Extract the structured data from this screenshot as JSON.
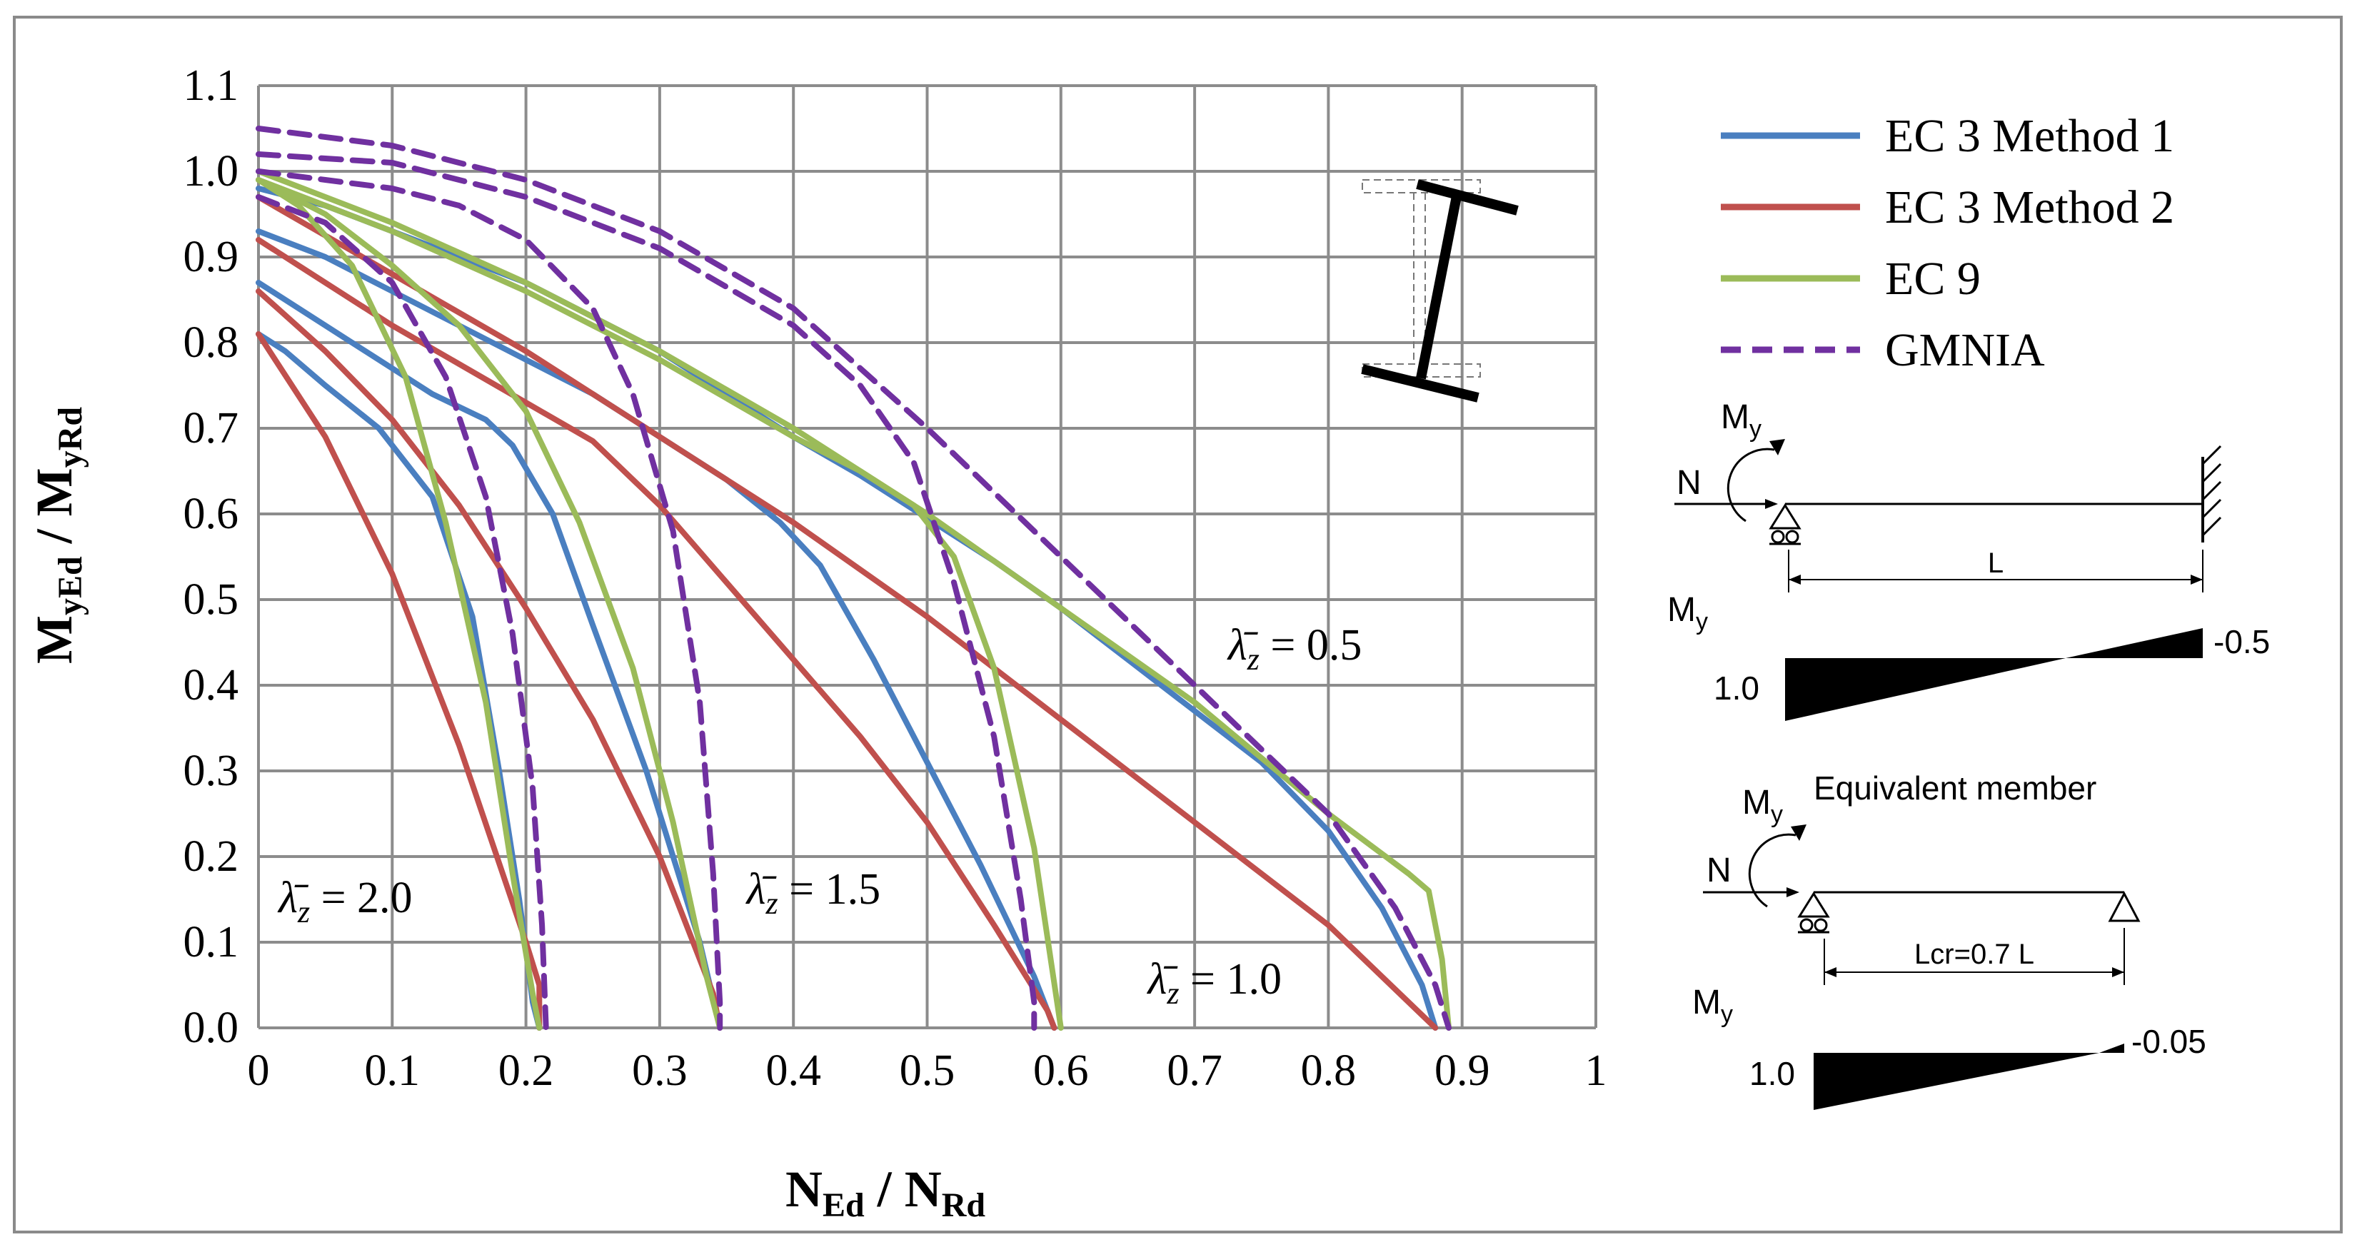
{
  "chart_data": {
    "type": "line",
    "xlabel_main": "N",
    "xlabel_sub1": "Ed",
    "xlabel_sep": " / ",
    "xlabel_main2": "N",
    "xlabel_sub2": "Rd",
    "ylabel_main": "M",
    "ylabel_sub1": "yEd",
    "ylabel_sep": " / ",
    "ylabel_main2": "M",
    "ylabel_sub2": "yRd",
    "xlim": [
      0,
      1
    ],
    "ylim": [
      0,
      1.1
    ],
    "x_ticks": [
      "0",
      "0.1",
      "0.2",
      "0.3",
      "0.4",
      "0.5",
      "0.6",
      "0.7",
      "0.8",
      "0.9",
      "1"
    ],
    "y_ticks": [
      "0.0",
      "0.1",
      "0.2",
      "0.3",
      "0.4",
      "0.5",
      "0.6",
      "0.7",
      "0.8",
      "0.9",
      "1.0",
      "1.1"
    ],
    "grid": true,
    "legend_position": "right",
    "series": [
      {
        "name": "EC 3 Method 1",
        "color": "#4a7fc0",
        "dash": false,
        "curves": [
          {
            "points": [
              [
                0,
                0.81
              ],
              [
                0.02,
                0.79
              ],
              [
                0.05,
                0.75
              ],
              [
                0.09,
                0.7
              ],
              [
                0.13,
                0.62
              ],
              [
                0.16,
                0.48
              ],
              [
                0.18,
                0.3
              ],
              [
                0.195,
                0.15
              ],
              [
                0.205,
                0.03
              ],
              [
                0.21,
                0.0
              ]
            ]
          },
          {
            "points": [
              [
                0,
                0.87
              ],
              [
                0.03,
                0.84
              ],
              [
                0.08,
                0.79
              ],
              [
                0.13,
                0.74
              ],
              [
                0.17,
                0.71
              ],
              [
                0.19,
                0.68
              ],
              [
                0.22,
                0.6
              ],
              [
                0.25,
                0.47
              ],
              [
                0.29,
                0.3
              ],
              [
                0.33,
                0.1
              ],
              [
                0.345,
                0.0
              ]
            ]
          },
          {
            "points": [
              [
                0,
                0.93
              ],
              [
                0.05,
                0.9
              ],
              [
                0.1,
                0.86
              ],
              [
                0.15,
                0.82
              ],
              [
                0.2,
                0.78
              ],
              [
                0.25,
                0.74
              ],
              [
                0.3,
                0.69
              ],
              [
                0.35,
                0.64
              ],
              [
                0.39,
                0.59
              ],
              [
                0.42,
                0.54
              ],
              [
                0.46,
                0.43
              ],
              [
                0.5,
                0.31
              ],
              [
                0.54,
                0.19
              ],
              [
                0.58,
                0.06
              ],
              [
                0.595,
                0.0
              ]
            ]
          },
          {
            "points": [
              [
                0,
                0.98
              ],
              [
                0.05,
                0.96
              ],
              [
                0.1,
                0.93
              ],
              [
                0.15,
                0.9
              ],
              [
                0.2,
                0.87
              ],
              [
                0.25,
                0.83
              ],
              [
                0.3,
                0.79
              ],
              [
                0.35,
                0.74
              ],
              [
                0.4,
                0.69
              ],
              [
                0.45,
                0.645
              ],
              [
                0.5,
                0.595
              ],
              [
                0.55,
                0.545
              ],
              [
                0.6,
                0.49
              ],
              [
                0.65,
                0.43
              ],
              [
                0.7,
                0.37
              ],
              [
                0.75,
                0.31
              ],
              [
                0.8,
                0.23
              ],
              [
                0.84,
                0.14
              ],
              [
                0.87,
                0.05
              ],
              [
                0.88,
                0.0
              ]
            ]
          }
        ]
      },
      {
        "name": "EC 3 Method 2",
        "color": "#c0504d",
        "dash": false,
        "curves": [
          {
            "points": [
              [
                0,
                0.81
              ],
              [
                0.05,
                0.69
              ],
              [
                0.1,
                0.53
              ],
              [
                0.15,
                0.33
              ],
              [
                0.2,
                0.1
              ],
              [
                0.21,
                0.05
              ],
              [
                0.21,
                0.0
              ]
            ]
          },
          {
            "points": [
              [
                0,
                0.86
              ],
              [
                0.05,
                0.79
              ],
              [
                0.1,
                0.71
              ],
              [
                0.15,
                0.61
              ],
              [
                0.2,
                0.49
              ],
              [
                0.25,
                0.36
              ],
              [
                0.3,
                0.2
              ],
              [
                0.34,
                0.04
              ],
              [
                0.345,
                0.0
              ]
            ]
          },
          {
            "points": [
              [
                0,
                0.92
              ],
              [
                0.05,
                0.87
              ],
              [
                0.1,
                0.82
              ],
              [
                0.15,
                0.775
              ],
              [
                0.2,
                0.73
              ],
              [
                0.25,
                0.685
              ],
              [
                0.3,
                0.61
              ],
              [
                0.35,
                0.52
              ],
              [
                0.4,
                0.43
              ],
              [
                0.45,
                0.34
              ],
              [
                0.5,
                0.24
              ],
              [
                0.55,
                0.12
              ],
              [
                0.59,
                0.02
              ],
              [
                0.595,
                0.0
              ]
            ]
          },
          {
            "points": [
              [
                0,
                0.97
              ],
              [
                0.1,
                0.88
              ],
              [
                0.2,
                0.79
              ],
              [
                0.3,
                0.69
              ],
              [
                0.4,
                0.59
              ],
              [
                0.5,
                0.48
              ],
              [
                0.6,
                0.36
              ],
              [
                0.7,
                0.24
              ],
              [
                0.8,
                0.12
              ],
              [
                0.88,
                0.0
              ]
            ]
          }
        ]
      },
      {
        "name": "EC 9",
        "color": "#9bbb59",
        "dash": false,
        "curves": [
          {
            "points": [
              [
                0,
                0.99
              ],
              [
                0.03,
                0.96
              ],
              [
                0.07,
                0.89
              ],
              [
                0.11,
                0.76
              ],
              [
                0.14,
                0.59
              ],
              [
                0.17,
                0.38
              ],
              [
                0.19,
                0.18
              ],
              [
                0.205,
                0.04
              ],
              [
                0.21,
                0.0
              ]
            ]
          },
          {
            "points": [
              [
                0,
                0.99
              ],
              [
                0.05,
                0.95
              ],
              [
                0.1,
                0.89
              ],
              [
                0.15,
                0.82
              ],
              [
                0.2,
                0.72
              ],
              [
                0.24,
                0.59
              ],
              [
                0.28,
                0.42
              ],
              [
                0.31,
                0.24
              ],
              [
                0.335,
                0.06
              ],
              [
                0.345,
                0.0
              ]
            ]
          },
          {
            "points": [
              [
                0,
                0.99
              ],
              [
                0.1,
                0.93
              ],
              [
                0.2,
                0.86
              ],
              [
                0.3,
                0.78
              ],
              [
                0.4,
                0.69
              ],
              [
                0.45,
                0.65
              ],
              [
                0.49,
                0.61
              ],
              [
                0.52,
                0.55
              ],
              [
                0.55,
                0.42
              ],
              [
                0.58,
                0.21
              ],
              [
                0.6,
                0.0
              ]
            ]
          },
          {
            "points": [
              [
                0,
                1.0
              ],
              [
                0.1,
                0.94
              ],
              [
                0.2,
                0.87
              ],
              [
                0.3,
                0.79
              ],
              [
                0.4,
                0.7
              ],
              [
                0.5,
                0.6
              ],
              [
                0.6,
                0.49
              ],
              [
                0.7,
                0.38
              ],
              [
                0.8,
                0.25
              ],
              [
                0.86,
                0.18
              ],
              [
                0.875,
                0.16
              ],
              [
                0.885,
                0.08
              ],
              [
                0.89,
                0.0
              ]
            ]
          }
        ]
      },
      {
        "name": "GMNIA",
        "color": "#7030a0",
        "dash": true,
        "curves": [
          {
            "points": [
              [
                0,
                0.97
              ],
              [
                0.05,
                0.94
              ],
              [
                0.1,
                0.87
              ],
              [
                0.14,
                0.76
              ],
              [
                0.17,
                0.62
              ],
              [
                0.19,
                0.46
              ],
              [
                0.205,
                0.28
              ],
              [
                0.212,
                0.12
              ],
              [
                0.215,
                0.0
              ]
            ]
          },
          {
            "points": [
              [
                0,
                1.0
              ],
              [
                0.05,
                0.99
              ],
              [
                0.1,
                0.98
              ],
              [
                0.15,
                0.96
              ],
              [
                0.2,
                0.92
              ],
              [
                0.25,
                0.84
              ],
              [
                0.28,
                0.74
              ],
              [
                0.31,
                0.58
              ],
              [
                0.33,
                0.38
              ],
              [
                0.34,
                0.18
              ],
              [
                0.345,
                0.03
              ],
              [
                0.345,
                0.0
              ]
            ]
          },
          {
            "points": [
              [
                0,
                1.02
              ],
              [
                0.1,
                1.01
              ],
              [
                0.2,
                0.97
              ],
              [
                0.3,
                0.91
              ],
              [
                0.4,
                0.82
              ],
              [
                0.45,
                0.75
              ],
              [
                0.49,
                0.66
              ],
              [
                0.52,
                0.52
              ],
              [
                0.55,
                0.34
              ],
              [
                0.57,
                0.15
              ],
              [
                0.58,
                0.03
              ],
              [
                0.58,
                0.0
              ]
            ]
          },
          {
            "points": [
              [
                0,
                1.05
              ],
              [
                0.1,
                1.03
              ],
              [
                0.2,
                0.99
              ],
              [
                0.3,
                0.93
              ],
              [
                0.4,
                0.84
              ],
              [
                0.5,
                0.7
              ],
              [
                0.6,
                0.55
              ],
              [
                0.7,
                0.4
              ],
              [
                0.8,
                0.25
              ],
              [
                0.85,
                0.14
              ],
              [
                0.88,
                0.05
              ],
              [
                0.89,
                0.0
              ]
            ]
          }
        ]
      }
    ],
    "annotations": [
      {
        "symbol": "λ̄",
        "sub": "z",
        "text": " = 2.0",
        "x": 0.015,
        "y": 0.135
      },
      {
        "symbol": "λ̄",
        "sub": "z",
        "text": " = 1.5",
        "x": 0.365,
        "y": 0.145
      },
      {
        "symbol": "λ̄",
        "sub": "z",
        "text": " = 1.0",
        "x": 0.665,
        "y": 0.04
      },
      {
        "symbol": "λ̄",
        "sub": "z",
        "text": " = 0.5",
        "x": 0.725,
        "y": 0.43
      }
    ]
  },
  "diagrams": {
    "top": {
      "moment_label": "M",
      "moment_sub": "y",
      "force_label": "N",
      "length_label": "L",
      "diagram_label": "M",
      "diagram_sub": "y",
      "left_value": "1.0",
      "right_value": "-0.5"
    },
    "bottom": {
      "title": "Equivalent member",
      "moment_label": "M",
      "moment_sub": "y",
      "force_label": "N",
      "length_label": "Lcr=0.7 L",
      "diagram_label": "M",
      "diagram_sub": "y",
      "left_value": "1.0",
      "right_value": "-0.05"
    }
  },
  "colors": {
    "grid": "#8c8c8c",
    "frame": "#8a8a8a",
    "text": "#000000"
  }
}
